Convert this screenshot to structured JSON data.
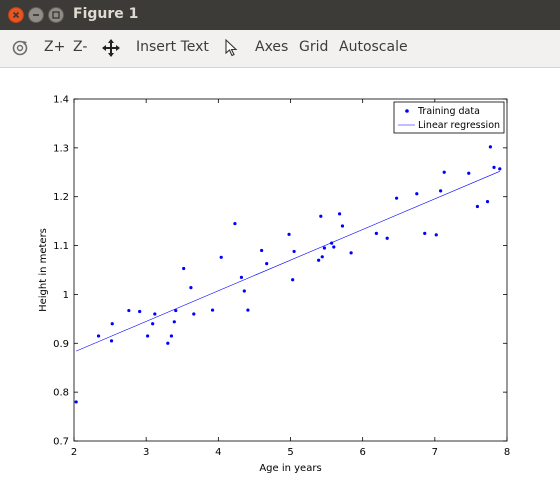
{
  "window": {
    "title": "Figure 1"
  },
  "toolbar": {
    "zoom_in": "Z+",
    "zoom_out": "Z-",
    "insert_text": "Insert Text",
    "axes": "Axes",
    "grid": "Grid",
    "autoscale": "Autoscale"
  },
  "icons": {
    "rotate": "rotate-icon",
    "pan": "pan-icon",
    "select": "select-pointer-icon",
    "close": "close-icon",
    "minimize": "minimize-icon",
    "maximize": "maximize-icon"
  },
  "colors": {
    "series": "#0000ff",
    "titlebar": "#3c3b37",
    "close_button": "#e95420"
  },
  "chart_data": {
    "type": "scatter",
    "xlabel": "Age in years",
    "ylabel": "Height in meters",
    "xlim": [
      2,
      8
    ],
    "ylim": [
      0.7,
      1.4
    ],
    "xticks": [
      "2",
      "3",
      "4",
      "5",
      "6",
      "7",
      "8"
    ],
    "yticks": [
      "0.7",
      "0.8",
      "0.9",
      "1",
      "1.1",
      "1.2",
      "1.3",
      "1.4"
    ],
    "grid": false,
    "legend_position": "top-right",
    "series": [
      {
        "name": "Training data",
        "kind": "points",
        "color": "#0000ff",
        "x": [
          2.03,
          2.34,
          2.52,
          2.53,
          2.76,
          2.91,
          3.02,
          3.09,
          3.12,
          3.3,
          3.35,
          3.39,
          3.41,
          3.52,
          3.62,
          3.66,
          3.92,
          4.04,
          4.23,
          4.32,
          4.36,
          4.41,
          4.6,
          4.67,
          4.98,
          5.03,
          5.05,
          5.39,
          5.42,
          5.44,
          5.47,
          5.57,
          5.6,
          5.68,
          5.72,
          5.84,
          6.19,
          6.34,
          6.47,
          6.75,
          6.86,
          7.02,
          7.08,
          7.13,
          7.47,
          7.59,
          7.73,
          7.77,
          7.82,
          7.9
        ],
        "y": [
          0.78,
          0.915,
          0.905,
          0.94,
          0.967,
          0.965,
          0.915,
          0.94,
          0.96,
          0.9,
          0.915,
          0.944,
          0.967,
          1.053,
          1.014,
          0.96,
          0.968,
          1.076,
          1.145,
          1.035,
          1.007,
          0.968,
          1.09,
          1.063,
          1.123,
          1.03,
          1.088,
          1.07,
          1.16,
          1.077,
          1.095,
          1.105,
          1.097,
          1.165,
          1.14,
          1.085,
          1.125,
          1.115,
          1.197,
          1.206,
          1.125,
          1.122,
          1.212,
          1.25,
          1.248,
          1.18,
          1.19,
          1.302,
          1.26,
          1.257
        ]
      },
      {
        "name": "Linear regression",
        "kind": "line",
        "color": "#0000ff",
        "x": [
          2.03,
          7.9
        ],
        "y": [
          0.884,
          1.252
        ]
      }
    ]
  }
}
